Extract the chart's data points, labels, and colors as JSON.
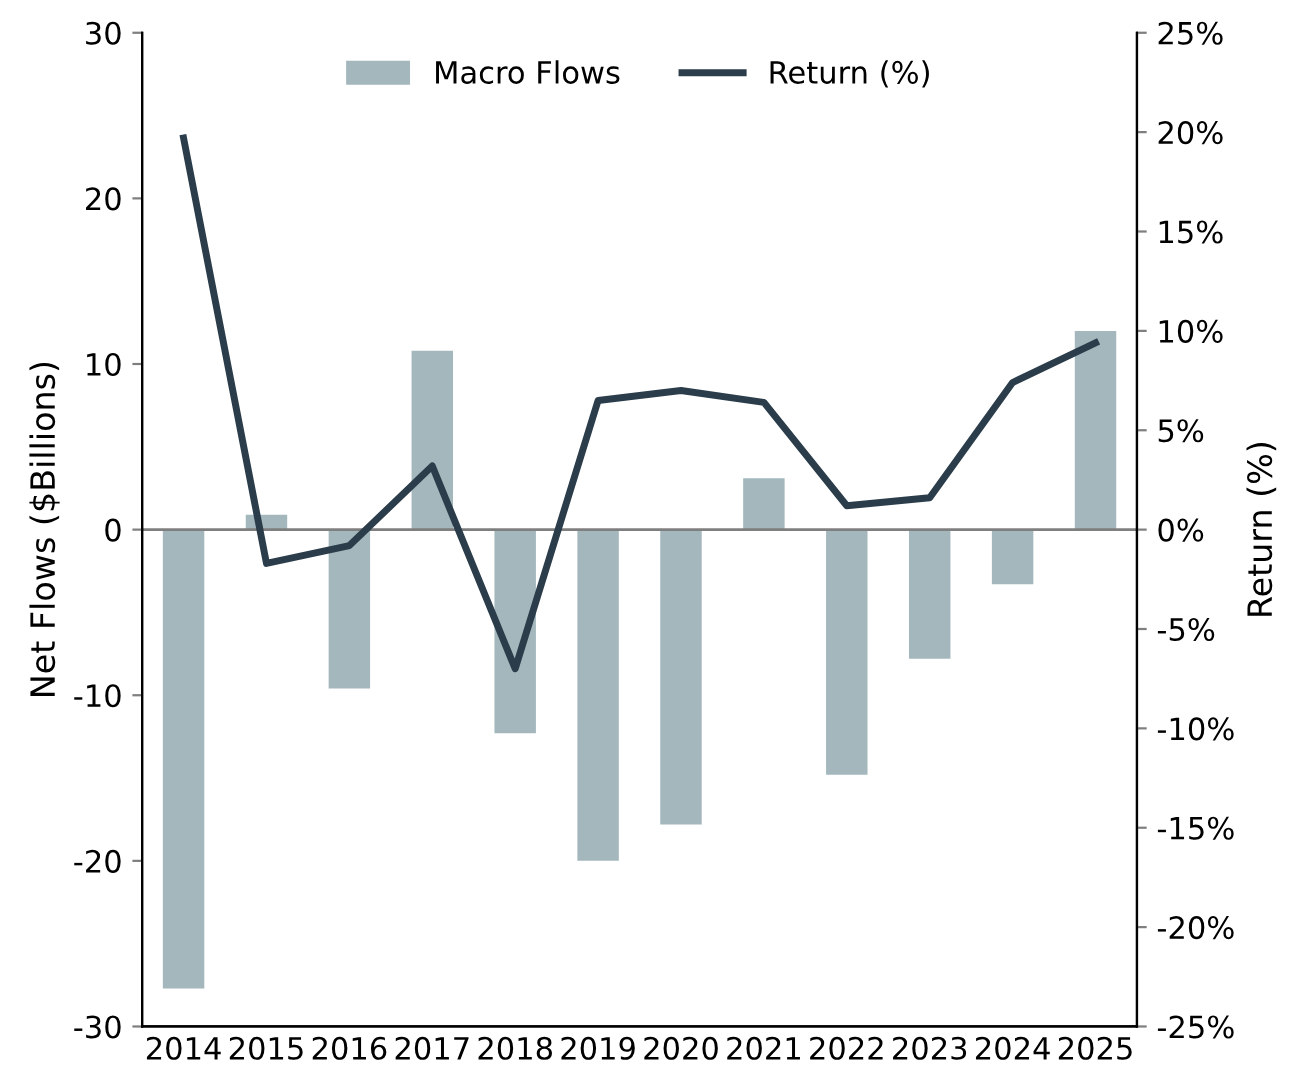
{
  "chart_data": {
    "type": "bar",
    "categories": [
      "2014",
      "2015",
      "2016",
      "2017",
      "2018",
      "2019",
      "2020",
      "2021",
      "2022",
      "2023",
      "2024",
      "2025"
    ],
    "ylabel": "Net Flows ($Billions)",
    "y2label": "Return (%)",
    "series": [
      {
        "name": "Macro Flows",
        "color": "#a3b7bd",
        "values": [
          -27.7,
          0.9,
          -9.6,
          10.8,
          -12.3,
          -20,
          -17.8,
          3.1,
          -14.8,
          -7.8,
          -3.3,
          12
        ]
      },
      {
        "name": "Return (%)",
        "type": "line",
        "axis": "y2",
        "color": "#2b3d4a",
        "values": [
          19.7,
          -1.7,
          -0.8,
          3.2,
          -7.0,
          6.5,
          7.0,
          6.4,
          1.2,
          1.6,
          7.4,
          9.4
        ]
      }
    ],
    "ylim": [
      -30,
      30
    ],
    "yticks": [
      -30,
      -20,
      -10,
      0,
      10,
      20,
      30
    ],
    "y2lim": [
      -25,
      25
    ],
    "y2ticks": [
      {
        "value": -25,
        "label": "-25%"
      },
      {
        "value": -20,
        "label": "-20%"
      },
      {
        "value": -15,
        "label": "-15%"
      },
      {
        "value": -10,
        "label": "-10%"
      },
      {
        "value": -5,
        "label": "-5%"
      },
      {
        "value": 0,
        "label": "0%"
      },
      {
        "value": 5,
        "label": "5%"
      },
      {
        "value": 10,
        "label": "10%"
      },
      {
        "value": 15,
        "label": "15%"
      },
      {
        "value": 20,
        "label": "20%"
      },
      {
        "value": 25,
        "label": "25%"
      }
    ],
    "ref_lines": [
      {
        "axis": "y",
        "value": 0,
        "color": "#7f7f7f"
      }
    ],
    "legend": "top",
    "grid": false,
    "marker": "none",
    "line_style": "solid"
  }
}
